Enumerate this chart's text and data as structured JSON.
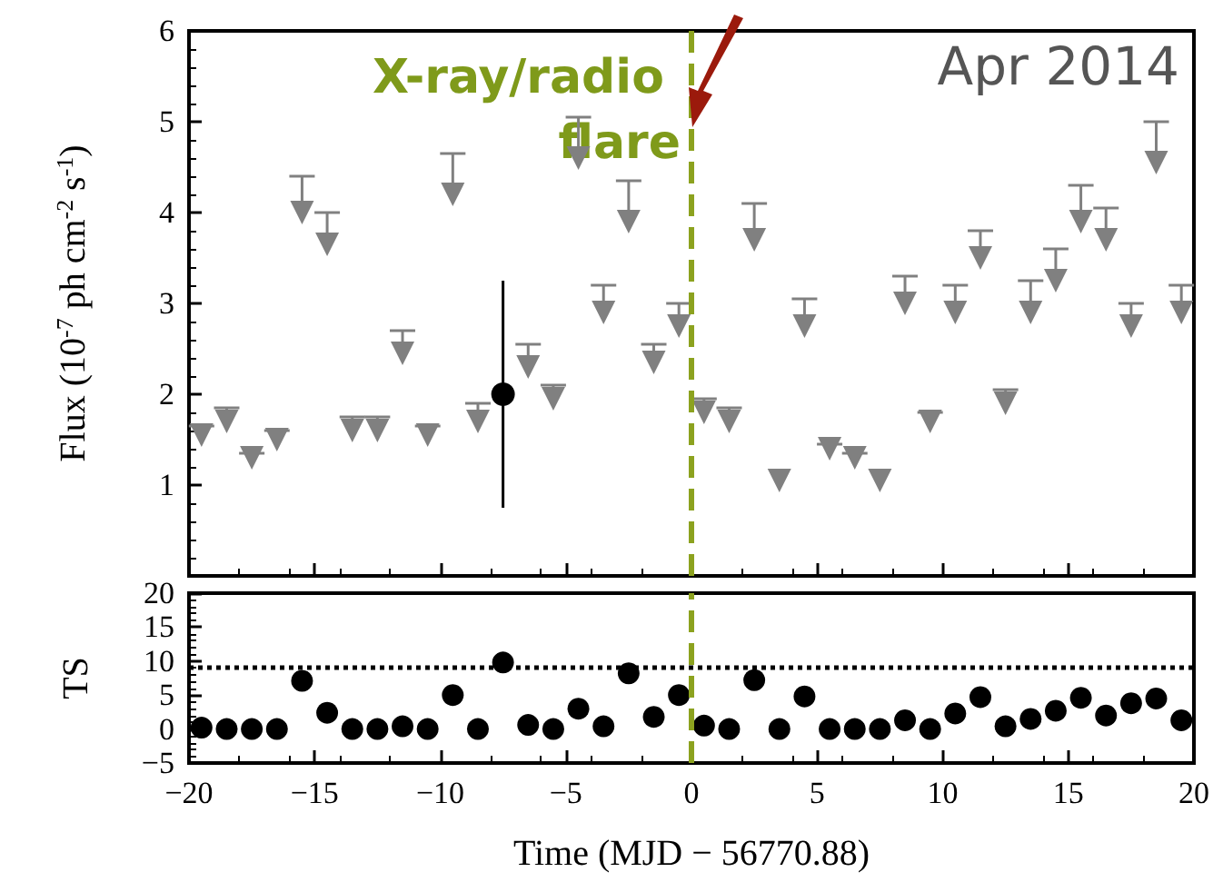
{
  "chart_data": [
    {
      "type": "scatter",
      "ylabel": "Flux (10$^{-7}$ ph cm$^{-2}$ s$^{-1}$)",
      "annotations": [
        "Apr 2014"
      ],
      "xlim": [
        -20,
        20
      ],
      "xticks": [
        -20,
        -15,
        -10,
        -5,
        0,
        5,
        10,
        15,
        20
      ],
      "ylim": [
        0,
        6
      ],
      "yticks": [
        1,
        2,
        3,
        4,
        5,
        6
      ],
      "tick_labels": "y",
      "ref_lines": [
        {
          "axis": "x",
          "value": 0,
          "label": "X-ray/radio flare",
          "color": "#8ca21f",
          "line_style": "dashed"
        }
      ],
      "series": [
        {
          "color": "#808080",
          "marker": "triangle",
          "x": [
            -19.5,
            -18.5,
            -17.5,
            -16.5,
            -15.5,
            -14.5,
            -13.5,
            -12.5,
            -11.5,
            -10.5,
            -9.5,
            -8.5,
            -6.5,
            -5.5,
            -4.5,
            -3.5,
            -2.5,
            -1.5,
            -0.5,
            0.5,
            1.5,
            2.5,
            3.5,
            4.5,
            5.5,
            6.5,
            7.5,
            8.5,
            9.5,
            10.5,
            11.5,
            12.5,
            13.5,
            14.5,
            15.5,
            16.5,
            17.5,
            18.5,
            19.5
          ],
          "values": [
            1.55,
            1.7,
            1.3,
            1.5,
            4.0,
            3.65,
            1.6,
            1.6,
            2.45,
            1.55,
            4.2,
            1.7,
            2.3,
            1.95,
            4.6,
            2.9,
            3.9,
            2.35,
            2.75,
            1.8,
            1.7,
            3.7,
            1.05,
            2.75,
            1.4,
            1.3,
            1.05,
            3.0,
            1.7,
            2.9,
            3.5,
            1.9,
            2.9,
            3.25,
            3.9,
            3.7,
            2.75,
            4.55,
            2.9
          ],
          "errors": [
            [
              1.55,
              1.65
            ],
            [
              1.7,
              1.85
            ],
            [
              1.3,
              1.35
            ],
            [
              1.5,
              1.6
            ],
            [
              4.0,
              4.4
            ],
            [
              3.65,
              4.0
            ],
            [
              1.6,
              1.75
            ],
            [
              1.6,
              1.75
            ],
            [
              2.45,
              2.7
            ],
            [
              1.55,
              1.65
            ],
            [
              4.2,
              4.65
            ],
            [
              1.7,
              1.9
            ],
            [
              2.3,
              2.55
            ],
            [
              1.95,
              2.1
            ],
            [
              4.6,
              5.05
            ],
            [
              2.9,
              3.2
            ],
            [
              3.9,
              4.35
            ],
            [
              2.35,
              2.55
            ],
            [
              2.75,
              3.0
            ],
            [
              1.8,
              1.95
            ],
            [
              1.7,
              1.85
            ],
            [
              3.7,
              4.1
            ],
            null,
            [
              2.75,
              3.05
            ],
            [
              1.4,
              1.45
            ],
            [
              1.3,
              1.35
            ],
            null,
            [
              3.0,
              3.3
            ],
            [
              1.7,
              1.8
            ],
            [
              2.9,
              3.2
            ],
            [
              3.5,
              3.8
            ],
            [
              1.9,
              2.05
            ],
            [
              2.9,
              3.25
            ],
            [
              3.25,
              3.6
            ],
            [
              3.9,
              4.3
            ],
            [
              3.7,
              4.05
            ],
            [
              2.75,
              3.0
            ],
            [
              4.55,
              5.0
            ],
            [
              2.9,
              3.2
            ]
          ]
        },
        {
          "color": "#000000",
          "marker": "circle",
          "x": [
            -7.5
          ],
          "values": [
            2.0
          ],
          "errors": [
            [
              0.75,
              3.25
            ]
          ]
        }
      ]
    },
    {
      "type": "scatter",
      "xlabel": "Time (MJD − 56770.88)",
      "ylabel": "TS",
      "xlim": [
        -20,
        20
      ],
      "xticks": [
        -20,
        -15,
        -10,
        -5,
        0,
        5,
        10,
        15,
        20
      ],
      "ylim": [
        -5,
        20
      ],
      "yticks": [
        -5,
        0,
        5,
        10,
        15,
        20
      ],
      "marker": "circle",
      "ref_lines": [
        {
          "axis": "x",
          "value": 0,
          "color": "#8ca21f",
          "line_style": "dashed"
        },
        {
          "axis": "y",
          "value": 9,
          "color": "#000000",
          "line_style": "dotted"
        }
      ],
      "series": [
        {
          "color": "#000000",
          "x": [
            -19.5,
            -18.5,
            -17.5,
            -16.5,
            -15.5,
            -14.5,
            -13.5,
            -12.5,
            -11.5,
            -10.5,
            -9.5,
            -8.5,
            -7.5,
            -6.5,
            -5.5,
            -4.5,
            -3.5,
            -2.5,
            -1.5,
            -0.5,
            0.5,
            1.5,
            2.5,
            3.5,
            4.5,
            5.5,
            6.5,
            7.5,
            8.5,
            9.5,
            10.5,
            11.5,
            12.5,
            13.5,
            14.5,
            15.5,
            16.5,
            17.5,
            18.5,
            19.5
          ],
          "values": [
            0.2,
            0,
            0,
            0,
            7.1,
            2.4,
            0,
            0,
            0.4,
            0,
            5,
            0,
            9.8,
            0.6,
            0,
            3,
            0.4,
            8.2,
            1.8,
            5,
            0.5,
            0,
            7.2,
            0,
            4.8,
            0,
            0,
            0,
            1.3,
            0,
            2.3,
            4.7,
            0.4,
            1.5,
            2.7,
            4.6,
            2,
            3.8,
            4.5,
            1.3
          ]
        }
      ]
    }
  ]
}
